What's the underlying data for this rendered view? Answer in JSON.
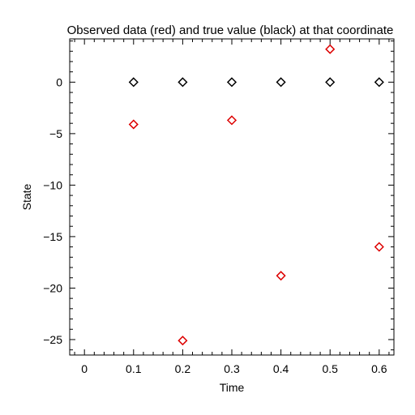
{
  "chart_data": {
    "type": "scatter",
    "title": "Observed data (red) and true value (black) at that coordinate",
    "xlabel": "Time",
    "ylabel": "State",
    "xlim": [
      -0.03,
      0.63
    ],
    "ylim": [
      -26.5,
      4.2
    ],
    "xticks": [
      0,
      0.1,
      0.2,
      0.3,
      0.4,
      0.5,
      0.6
    ],
    "xtick_labels": [
      "0",
      "0.1",
      "0.2",
      "0.3",
      "0.4",
      "0.5",
      "0.6"
    ],
    "xminor_step": 0.02,
    "yticks": [
      0,
      -5,
      -10,
      -15,
      -20,
      -25
    ],
    "ytick_labels": [
      "0",
      "−5",
      "−10",
      "−15",
      "−20",
      "−25"
    ],
    "yminor_step": 1,
    "grid": false,
    "legend": "none",
    "marker": "diamond",
    "series": [
      {
        "color": "#dd0000",
        "x": [
          0.1,
          0.2,
          0.3,
          0.4,
          0.5,
          0.6
        ],
        "y": [
          -4.1,
          -25.1,
          -3.7,
          -18.8,
          3.2,
          -16.0
        ]
      },
      {
        "color": "#000000",
        "x": [
          0.1,
          0.2,
          0.3,
          0.4,
          0.5,
          0.6
        ],
        "y": [
          0,
          0,
          0,
          0,
          0,
          0
        ]
      }
    ]
  }
}
